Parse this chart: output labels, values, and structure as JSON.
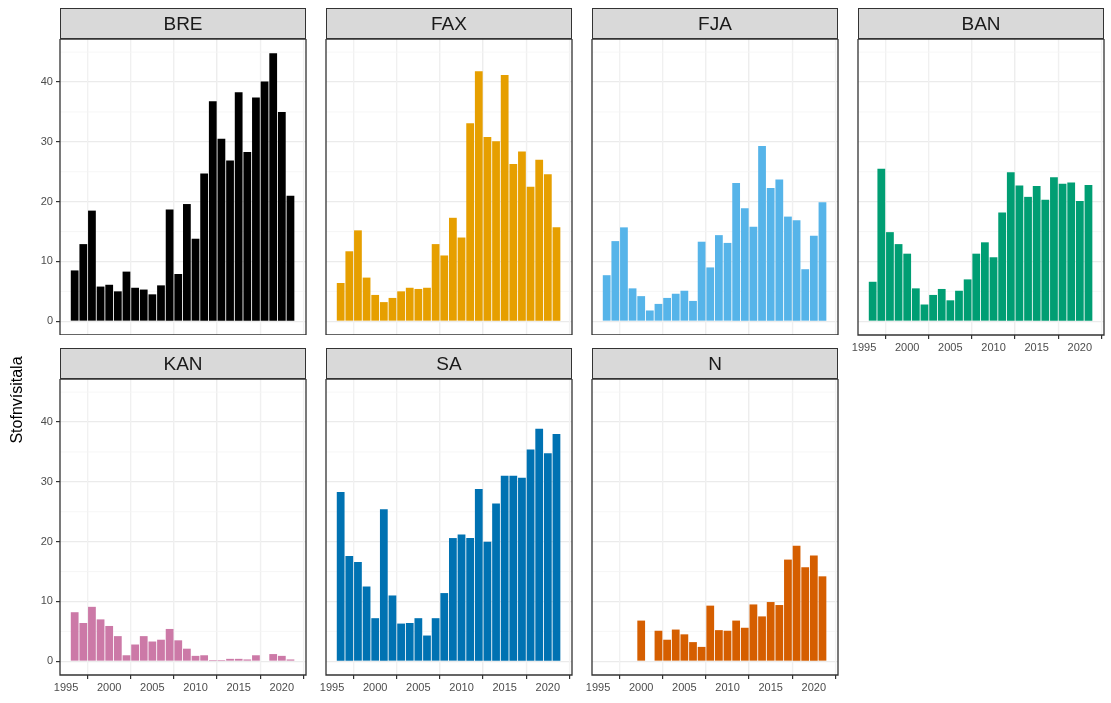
{
  "chart_data": [
    {
      "type": "bar",
      "title": "BRE",
      "ylabel": "Stofnvísitala",
      "color": "#000000",
      "x": [
        1996,
        1997,
        1998,
        1999,
        2000,
        2001,
        2002,
        2003,
        2004,
        2005,
        2006,
        2007,
        2008,
        2009,
        2010,
        2011,
        2012,
        2013,
        2014,
        2015,
        2016,
        2017,
        2018,
        2019,
        2020,
        2021
      ],
      "values": [
        8.5,
        12.9,
        18.5,
        5.8,
        6.1,
        5.0,
        8.3,
        5.6,
        5.3,
        4.5,
        6.0,
        18.7,
        7.9,
        19.6,
        13.8,
        24.7,
        36.8,
        30.5,
        26.9,
        38.3,
        28.3,
        37.4,
        40.1,
        44.8,
        35.0,
        21.0
      ],
      "xlim": [
        1994.3,
        2022.8
      ],
      "xticks": [
        1995,
        2000,
        2005,
        2010,
        2015,
        2020
      ],
      "ylim": [
        -2.3,
        47.2
      ],
      "yticks": [
        0,
        10,
        20,
        30,
        40
      ],
      "grid": true,
      "tick_labels": "y"
    },
    {
      "type": "bar",
      "title": "FAX",
      "color": "#e69f00",
      "x": [
        1996,
        1997,
        1998,
        1999,
        2000,
        2001,
        2002,
        2003,
        2004,
        2005,
        2006,
        2007,
        2008,
        2009,
        2010,
        2011,
        2012,
        2013,
        2014,
        2015,
        2016,
        2017,
        2018,
        2019,
        2020,
        2021
      ],
      "values": [
        6.4,
        11.7,
        15.2,
        7.3,
        4.4,
        3.2,
        3.9,
        5.0,
        5.6,
        5.4,
        5.6,
        12.9,
        11.0,
        17.3,
        14.0,
        33.1,
        41.8,
        30.8,
        30.1,
        41.2,
        26.3,
        28.4,
        22.5,
        27.0,
        24.6,
        15.7
      ],
      "xlim": [
        1994.3,
        2022.8
      ],
      "xticks": [
        1995,
        2000,
        2005,
        2010,
        2015,
        2020
      ],
      "ylim": [
        -2.3,
        47.2
      ],
      "yticks": [
        0,
        10,
        20,
        30,
        40
      ],
      "grid": true,
      "tick_labels": false
    },
    {
      "type": "bar",
      "title": "FJA",
      "color": "#56b4e9",
      "x": [
        1996,
        1997,
        1998,
        1999,
        2000,
        2001,
        2002,
        2003,
        2004,
        2005,
        2006,
        2007,
        2008,
        2009,
        2010,
        2011,
        2012,
        2013,
        2014,
        2015,
        2016,
        2017,
        2018,
        2019,
        2020,
        2021
      ],
      "values": [
        7.7,
        13.4,
        15.7,
        5.5,
        4.2,
        1.8,
        2.9,
        3.9,
        4.6,
        5.1,
        3.4,
        13.3,
        9.0,
        14.4,
        13.1,
        23.1,
        18.9,
        15.8,
        29.3,
        22.3,
        23.7,
        17.5,
        16.9,
        8.7,
        14.3,
        19.9
      ],
      "xlim": [
        1994.3,
        2022.8
      ],
      "xticks": [
        1995,
        2000,
        2005,
        2010,
        2015,
        2020
      ],
      "ylim": [
        -2.3,
        47.2
      ],
      "yticks": [
        0,
        10,
        20,
        30,
        40
      ],
      "grid": true,
      "tick_labels": false
    },
    {
      "type": "bar",
      "title": "BAN",
      "color": "#009e73",
      "x": [
        1996,
        1997,
        1998,
        1999,
        2000,
        2001,
        2002,
        2003,
        2004,
        2005,
        2006,
        2007,
        2008,
        2009,
        2010,
        2011,
        2012,
        2013,
        2014,
        2015,
        2016,
        2017,
        2018,
        2019,
        2020,
        2021
      ],
      "values": [
        6.6,
        25.5,
        14.9,
        12.9,
        11.3,
        5.5,
        2.8,
        4.4,
        5.4,
        3.5,
        5.1,
        7.0,
        11.3,
        13.2,
        10.7,
        18.2,
        24.9,
        22.7,
        20.8,
        22.6,
        20.3,
        24.1,
        23.0,
        23.2,
        20.1,
        22.8
      ],
      "xlim": [
        1994.3,
        2022.8
      ],
      "xticks": [
        1995,
        2000,
        2005,
        2010,
        2015,
        2020
      ],
      "ylim": [
        -2.3,
        47.2
      ],
      "yticks": [
        0,
        10,
        20,
        30,
        40
      ],
      "grid": true,
      "tick_labels": "x"
    },
    {
      "type": "bar",
      "title": "KAN",
      "color": "#cc79a7",
      "x": [
        1996,
        1997,
        1998,
        1999,
        2000,
        2001,
        2002,
        2003,
        2004,
        2005,
        2006,
        2007,
        2008,
        2009,
        2010,
        2011,
        2012,
        2013,
        2014,
        2015,
        2016,
        2017,
        2018,
        2019,
        2020,
        2021
      ],
      "values": [
        8.2,
        6.4,
        9.1,
        7.0,
        5.9,
        4.2,
        1.0,
        2.8,
        4.2,
        3.3,
        3.6,
        5.4,
        3.5,
        2.1,
        0.9,
        1.0,
        0.2,
        0.2,
        0.4,
        0.4,
        0.3,
        1.0,
        0.1,
        1.2,
        0.9,
        0.3
      ],
      "xlim": [
        1994.3,
        2022.8
      ],
      "xticks": [
        1995,
        2000,
        2005,
        2010,
        2015,
        2020
      ],
      "ylim": [
        -2.3,
        47.2
      ],
      "yticks": [
        0,
        10,
        20,
        30,
        40
      ],
      "grid": true
    },
    {
      "type": "bar",
      "title": "SA",
      "color": "#0072b2",
      "x": [
        1996,
        1997,
        1998,
        1999,
        2000,
        2001,
        2002,
        2003,
        2004,
        2005,
        2006,
        2007,
        2008,
        2009,
        2010,
        2011,
        2012,
        2013,
        2014,
        2015,
        2016,
        2017,
        2018,
        2019,
        2020,
        2021
      ],
      "values": [
        28.3,
        17.6,
        16.6,
        12.5,
        7.2,
        25.4,
        11.0,
        6.3,
        6.4,
        7.2,
        4.3,
        7.2,
        11.4,
        20.6,
        21.2,
        20.6,
        28.8,
        20.0,
        26.4,
        31.0,
        31.0,
        30.7,
        35.4,
        38.9,
        34.8,
        38.0
      ],
      "xlim": [
        1994.3,
        2022.8
      ],
      "xticks": [
        1995,
        2000,
        2005,
        2010,
        2015,
        2020
      ],
      "ylim": [
        -2.3,
        47.2
      ],
      "yticks": [
        0,
        10,
        20,
        30,
        40
      ],
      "grid": true,
      "tick_labels": "x"
    },
    {
      "type": "bar",
      "title": "N",
      "color": "#d55e00",
      "x": [
        2000,
        2002,
        2003,
        2004,
        2005,
        2006,
        2007,
        2008,
        2009,
        2010,
        2011,
        2012,
        2013,
        2014,
        2015,
        2016,
        2017,
        2018,
        2019,
        2020,
        2021
      ],
      "values": [
        6.8,
        5.1,
        3.6,
        5.3,
        4.5,
        3.2,
        2.4,
        9.3,
        5.2,
        5.1,
        6.8,
        5.6,
        9.5,
        7.5,
        9.9,
        9.4,
        17.0,
        19.3,
        15.7,
        17.7,
        14.2
      ],
      "xlim": [
        1994.3,
        2022.8
      ],
      "xticks": [
        1995,
        2000,
        2005,
        2010,
        2015,
        2020
      ],
      "ylim": [
        -2.3,
        47.2
      ],
      "yticks": [
        0,
        10,
        20,
        30,
        40
      ],
      "grid": true,
      "tick_labels": "x"
    }
  ]
}
